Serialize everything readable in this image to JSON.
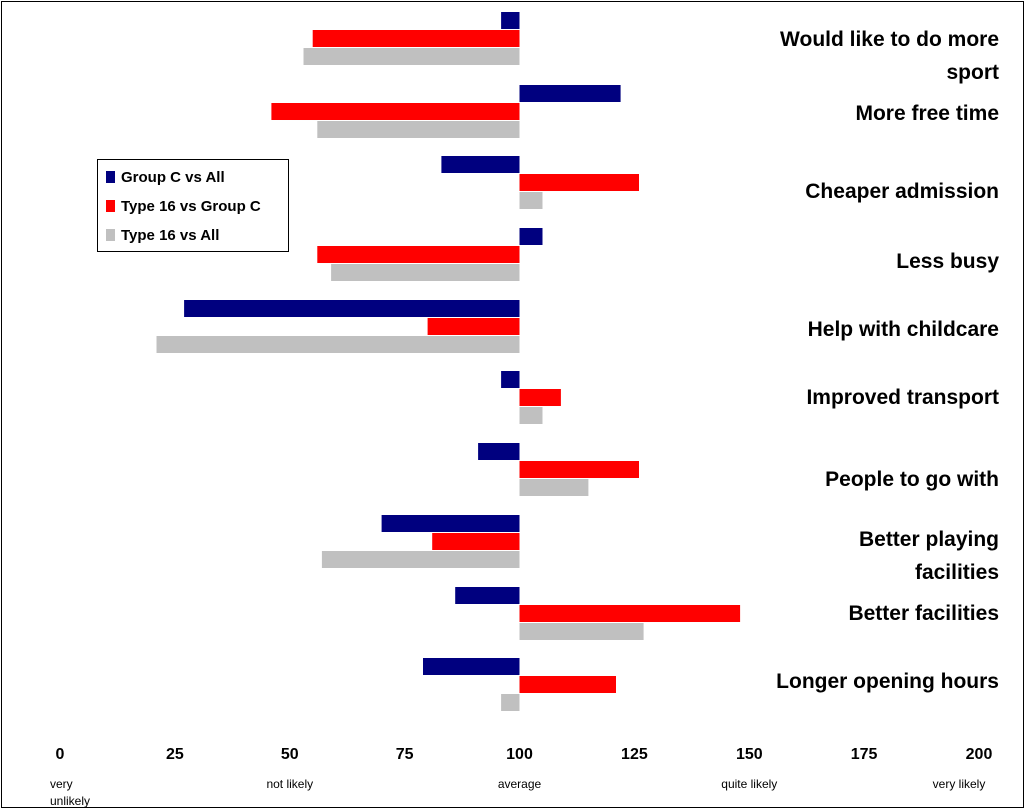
{
  "chart_data": {
    "type": "bar",
    "orientation": "horizontal",
    "baseline": 100,
    "categories": [
      [
        "Would like to do more",
        "sport"
      ],
      [
        "More free time"
      ],
      [
        "Cheaper admission"
      ],
      [
        "Less busy"
      ],
      [
        "Help with childcare"
      ],
      [
        "Improved transport"
      ],
      [
        "People to go with"
      ],
      [
        "Better playing",
        "facilities"
      ],
      [
        "Better facilities"
      ],
      [
        "Longer opening hours"
      ]
    ],
    "series": [
      {
        "name": "Group C vs All",
        "color": "#00007f",
        "values": [
          96,
          122,
          83,
          105,
          27,
          96,
          91,
          70,
          86,
          79
        ]
      },
      {
        "name": "Type 16 vs Group C",
        "color": "#ff0000",
        "values": [
          55,
          46,
          126,
          56,
          80,
          109,
          126,
          81,
          148,
          121
        ]
      },
      {
        "name": "Type 16 vs All",
        "color": "#c0c0c0",
        "values": [
          53,
          56,
          105,
          59,
          21,
          105,
          115,
          57,
          127,
          96
        ]
      }
    ],
    "xlim": [
      0,
      200
    ],
    "xticks": [
      "0",
      "25",
      "50",
      "75",
      "100",
      "125",
      "150",
      "175",
      "200"
    ],
    "xtick_values": [
      0,
      25,
      50,
      75,
      100,
      125,
      150,
      175,
      200
    ],
    "scale_labels": [
      {
        "value": 0,
        "lines": [
          "very",
          "unlikely"
        ]
      },
      {
        "value": 50,
        "lines": [
          "not likely"
        ]
      },
      {
        "value": 100,
        "lines": [
          "average"
        ]
      },
      {
        "value": 150,
        "lines": [
          "quite likely"
        ]
      },
      {
        "value": 200,
        "lines": [
          "very likely"
        ]
      }
    ],
    "legend_position": "upper-left",
    "grid": false
  }
}
